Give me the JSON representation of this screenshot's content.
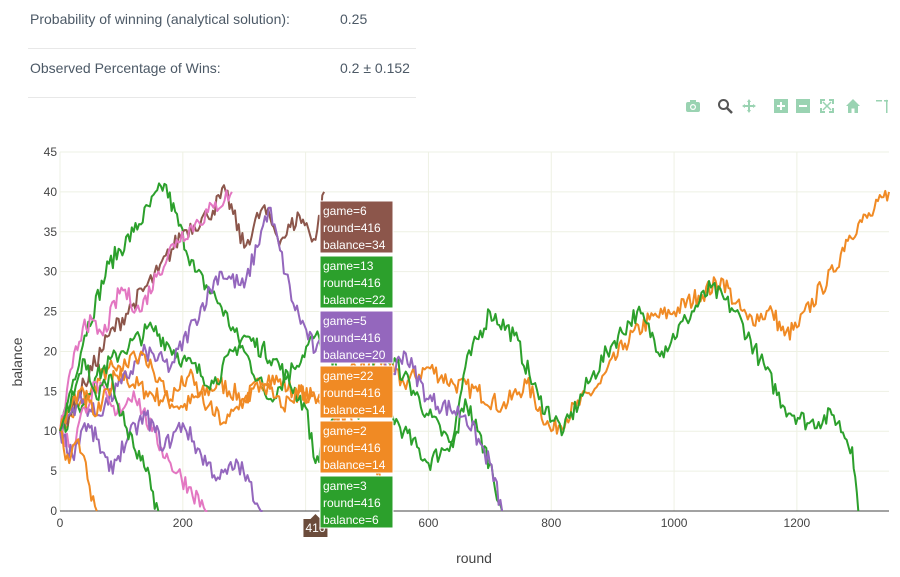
{
  "stats": [
    {
      "label": "Probability of winning (analytical solution):",
      "value": "0.25"
    },
    {
      "label": "Observed Percentage of Wins:",
      "value": "0.2 ± 0.152"
    }
  ],
  "toolbar": {
    "items": [
      "camera-icon",
      "zoom-icon",
      "pan-icon",
      "zoom-in-icon",
      "zoom-out-icon",
      "autoscale-icon",
      "reset-axes-icon",
      "spike-lines-icon"
    ]
  },
  "hover": {
    "cursor_label": "416",
    "tooltips": [
      {
        "lines": [
          "game=6",
          "round=416",
          "balance=34"
        ],
        "color": "#8c564b"
      },
      {
        "lines": [
          "game=13",
          "round=416",
          "balance=22"
        ],
        "color": "#2ca02c"
      },
      {
        "lines": [
          "game=5",
          "round=416",
          "balance=20"
        ],
        "color": "#9467bd"
      },
      {
        "lines": [
          "game=22",
          "round=416",
          "balance=14"
        ],
        "color": "#f08a24"
      },
      {
        "lines": [
          "game=2",
          "round=416",
          "balance=14"
        ],
        "color": "#f08a24"
      },
      {
        "lines": [
          "game=3",
          "round=416",
          "balance=6"
        ],
        "color": "#2ca02c"
      }
    ]
  },
  "chart_data": {
    "type": "line",
    "xlabel": "round",
    "ylabel": "balance",
    "xlim": [
      0,
      1350
    ],
    "ylim": [
      0,
      45
    ],
    "xticks": [
      0,
      200,
      400,
      600,
      800,
      1000,
      1200
    ],
    "xtick_labels": [
      "0",
      "200",
      "",
      "600",
      "800",
      "1000",
      "1200"
    ],
    "yticks": [
      0,
      5,
      10,
      15,
      20,
      25,
      30,
      35,
      40,
      45
    ],
    "grid": true,
    "series": [
      {
        "color": "#f08a24",
        "x": [
          0,
          40,
          80,
          140,
          200,
          260,
          300,
          340,
          380,
          420,
          470,
          520,
          560,
          600,
          640,
          680,
          720,
          760,
          800,
          840,
          880,
          920,
          960,
          1000,
          1040,
          1080,
          1100,
          1120,
          1160,
          1180,
          1200,
          1240,
          1260,
          1280,
          1300,
          1320,
          1350
        ],
        "y": [
          10,
          14,
          18,
          15,
          13,
          16,
          14,
          17,
          15,
          14,
          17,
          19,
          16,
          18,
          16,
          15,
          13,
          16,
          10,
          13,
          16,
          21,
          24,
          25,
          27,
          29,
          26,
          24,
          25,
          22,
          23,
          28,
          30,
          34,
          36,
          37,
          40
        ]
      },
      {
        "color": "#2ca02c",
        "x": [
          0,
          40,
          80,
          120,
          170,
          220,
          260,
          300,
          340,
          380,
          416,
          450,
          480,
          520,
          560,
          600,
          640,
          660,
          700,
          740,
          780,
          820,
          860,
          900,
          940,
          980,
          1020,
          1060,
          1100,
          1140,
          1180,
          1220,
          1260,
          1290,
          1300
        ],
        "y": [
          10,
          22,
          31,
          35,
          41,
          30,
          26,
          20,
          14,
          18,
          22,
          18,
          12,
          14,
          10,
          6,
          9,
          18,
          25,
          22,
          14,
          10,
          16,
          21,
          25,
          20,
          24,
          28,
          25,
          19,
          13,
          11,
          12,
          8,
          0
        ]
      },
      {
        "color": "#2ca02c",
        "x": [
          0,
          30,
          60,
          100,
          150,
          200,
          250,
          300,
          350,
          400,
          416,
          440,
          470,
          500,
          530,
          560,
          600,
          640,
          660,
          680,
          700,
          720
        ],
        "y": [
          10,
          13,
          17,
          20,
          23,
          19,
          16,
          22,
          19,
          13,
          6,
          11,
          15,
          18,
          20,
          17,
          12,
          8,
          14,
          10,
          6,
          0
        ]
      },
      {
        "color": "#8c564b",
        "x": [
          0,
          40,
          80,
          120,
          160,
          200,
          240,
          270,
          300,
          330,
          360,
          390,
          416,
          430
        ],
        "y": [
          10,
          16,
          22,
          26,
          30,
          35,
          37,
          40,
          33,
          38,
          34,
          37,
          34,
          40
        ]
      },
      {
        "color": "#9467bd",
        "x": [
          0,
          30,
          60,
          100,
          140,
          180,
          220,
          260,
          300,
          340,
          380,
          416,
          460,
          500,
          540,
          560,
          600,
          660,
          700,
          720
        ],
        "y": [
          10,
          14,
          12,
          16,
          20,
          18,
          24,
          30,
          28,
          38,
          26,
          20,
          22,
          24,
          17,
          20,
          14,
          12,
          6,
          0
        ]
      },
      {
        "color": "#e377c2",
        "x": [
          0,
          20,
          40,
          70,
          100,
          130,
          160,
          190,
          220,
          250,
          280
        ],
        "y": [
          10,
          18,
          24,
          22,
          28,
          25,
          30,
          34,
          36,
          38,
          40
        ]
      },
      {
        "color": "#e377c2",
        "x": [
          0,
          20,
          40,
          60,
          90,
          120,
          150,
          180,
          210,
          240
        ],
        "y": [
          10,
          8,
          13,
          16,
          12,
          15,
          10,
          6,
          3,
          0
        ]
      },
      {
        "color": "#f08a24",
        "x": [
          0,
          30,
          60,
          90,
          120,
          150,
          180,
          210,
          240,
          270,
          300,
          330,
          360,
          390,
          416,
          450,
          490,
          540
        ],
        "y": [
          10,
          15,
          12,
          17,
          20,
          18,
          14,
          17,
          13,
          11,
          14,
          16,
          13,
          15,
          14,
          12,
          10,
          0
        ]
      },
      {
        "color": "#9467bd",
        "x": [
          0,
          20,
          40,
          60,
          80,
          110,
          140,
          170,
          200,
          230,
          260,
          290,
          330
        ],
        "y": [
          10,
          7,
          11,
          9,
          5,
          9,
          12,
          8,
          11,
          7,
          4,
          6,
          0
        ]
      },
      {
        "color": "#f08a24",
        "x": [
          0,
          15,
          30,
          45,
          60
        ],
        "y": [
          10,
          6,
          9,
          4,
          0
        ]
      },
      {
        "color": "#2ca02c",
        "x": [
          0,
          20,
          40,
          60,
          80,
          100,
          120,
          140,
          160
        ],
        "y": [
          10,
          15,
          19,
          14,
          17,
          12,
          8,
          5,
          0
        ]
      }
    ]
  }
}
